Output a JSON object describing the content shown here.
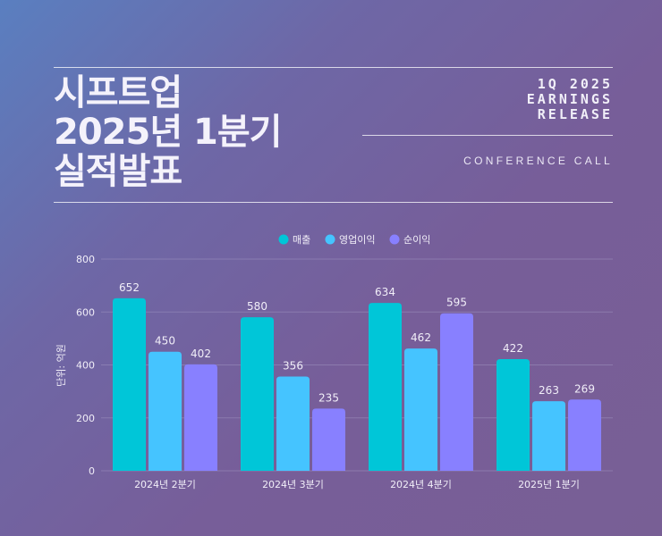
{
  "header": {
    "title_lines": [
      "시프트업",
      "2025년 1분기",
      "실적발표"
    ],
    "right_lines": [
      "1Q 2025",
      "EARNINGS",
      "RELEASE"
    ],
    "subtitle": "CONFERENCE CALL"
  },
  "colors": {
    "series": [
      "#00c6d8",
      "#45c4ff",
      "#8880ff"
    ],
    "text": "#f1eef8",
    "grid": "#a79cc6"
  },
  "chart_data": {
    "type": "bar",
    "categories": [
      "2024년 2분기",
      "2024년 3분기",
      "2024년 4분기",
      "2025년 1분기"
    ],
    "series": [
      {
        "name": "매출",
        "values": [
          652,
          580,
          634,
          422
        ]
      },
      {
        "name": "영업이익",
        "values": [
          450,
          356,
          462,
          263
        ]
      },
      {
        "name": "순이익",
        "values": [
          402,
          235,
          595,
          269
        ]
      }
    ],
    "ylabel": "단위: 억원",
    "xlabel": "",
    "ylim": [
      0,
      800
    ],
    "yticks": [
      0,
      200,
      400,
      600,
      800
    ],
    "grid": true,
    "legend": "top-center",
    "data_labels": true
  }
}
